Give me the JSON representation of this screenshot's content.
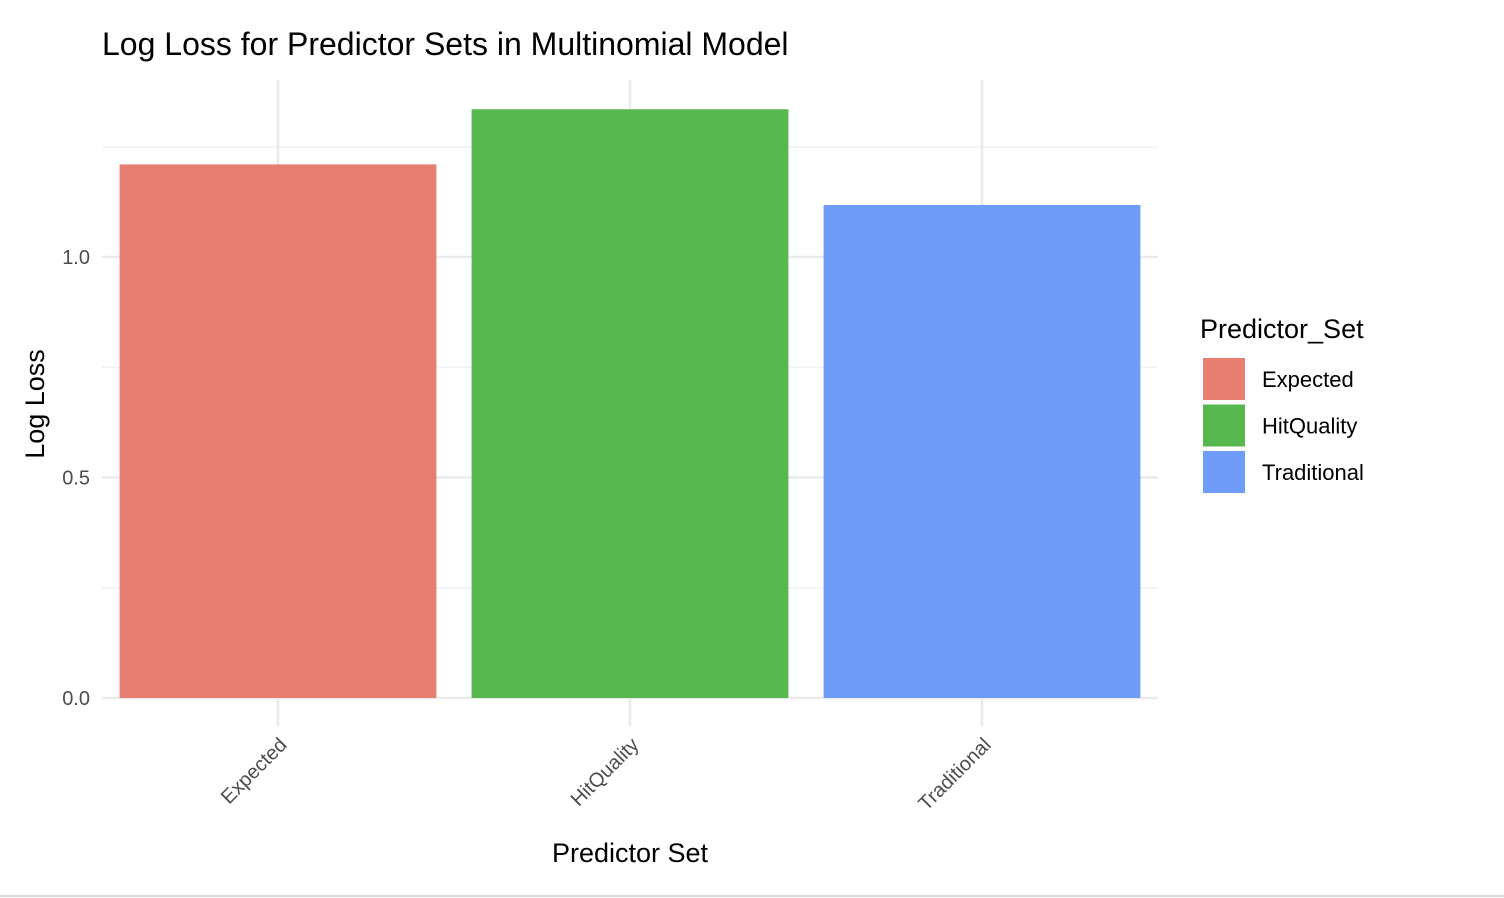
{
  "chart_data": {
    "type": "bar",
    "title": "Log Loss for Predictor Sets in Multinomial Model",
    "xlabel": "Predictor Set",
    "ylabel": "Log Loss",
    "categories": [
      "Expected",
      "HitQuality",
      "Traditional"
    ],
    "values": [
      1.21,
      1.335,
      1.118
    ],
    "colors": [
      "#E87D72",
      "#56B84E",
      "#6E9CF8"
    ],
    "ylim": [
      0,
      1.4
    ],
    "yticks": [
      {
        "value": 0.0,
        "label": "0.0"
      },
      {
        "value": 0.5,
        "label": "0.5"
      },
      {
        "value": 1.0,
        "label": "1.0"
      }
    ],
    "grid": true,
    "legend": {
      "title": "Predictor_Set",
      "position": "right",
      "entries": [
        "Expected",
        "HitQuality",
        "Traditional"
      ]
    }
  }
}
